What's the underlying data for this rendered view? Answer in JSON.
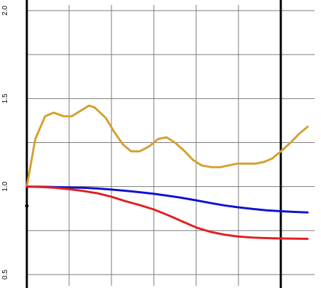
{
  "chart_data": {
    "type": "line",
    "title": "",
    "xlabel": "",
    "ylabel": "",
    "xlim": [
      0,
      20
    ],
    "ylim": [
      0.5,
      2.0
    ],
    "grid": true,
    "x_grid": [
      0,
      3,
      6,
      9,
      12,
      15,
      18
    ],
    "y_ticks": [
      {
        "value": 0.5,
        "label": "0.5"
      },
      {
        "value": 1.0,
        "label": "1.0"
      },
      {
        "value": 1.5,
        "label": "1.5"
      },
      {
        "value": 2.0,
        "label": "2.0"
      }
    ],
    "y_grid": [
      0.5,
      0.75,
      1.0,
      1.25,
      1.5,
      1.75,
      2.0
    ],
    "vertical_lines": [
      {
        "x": 0,
        "color": "#000000"
      },
      {
        "x": 18,
        "color": "#000000"
      }
    ],
    "point": {
      "x": 0,
      "y": 0.89,
      "color": "#000000"
    },
    "series": [
      {
        "color": "#d4a030",
        "x": [
          0,
          0.6,
          1.3,
          1.9,
          2.6,
          3.2,
          3.8,
          4.4,
          4.8,
          5.6,
          6.2,
          6.8,
          7.4,
          8.0,
          8.7,
          9.3,
          9.9,
          10.5,
          11.2,
          11.8,
          12.4,
          13.1,
          13.7,
          14.3,
          14.9,
          15.5,
          16.2,
          16.8,
          17.4,
          18.0,
          18.7,
          19.3,
          19.9
        ],
        "y": [
          1.0,
          1.27,
          1.4,
          1.42,
          1.4,
          1.4,
          1.43,
          1.46,
          1.45,
          1.39,
          1.31,
          1.24,
          1.2,
          1.2,
          1.23,
          1.27,
          1.28,
          1.25,
          1.2,
          1.15,
          1.12,
          1.11,
          1.11,
          1.12,
          1.13,
          1.13,
          1.13,
          1.14,
          1.16,
          1.2,
          1.25,
          1.3,
          1.34
        ]
      },
      {
        "color": "#1010d0",
        "x": [
          0,
          1.0,
          2.0,
          3.0,
          4.0,
          5.0,
          6.0,
          7.0,
          8.0,
          9.0,
          10.0,
          11.0,
          12.0,
          13.0,
          14.0,
          15.0,
          16.0,
          17.0,
          18.0,
          19.0,
          19.9
        ],
        "y": [
          1.0,
          0.999,
          0.997,
          0.995,
          0.993,
          0.989,
          0.983,
          0.976,
          0.968,
          0.959,
          0.948,
          0.936,
          0.922,
          0.907,
          0.893,
          0.882,
          0.873,
          0.865,
          0.86,
          0.856,
          0.853
        ]
      },
      {
        "color": "#e02020",
        "x": [
          0,
          1.0,
          2.0,
          3.0,
          4.0,
          5.0,
          6.0,
          7.0,
          8.0,
          9.0,
          10.0,
          11.0,
          12.0,
          13.0,
          14.0,
          15.0,
          16.0,
          17.0,
          18.0,
          19.0,
          19.9
        ],
        "y": [
          1.0,
          0.998,
          0.993,
          0.985,
          0.975,
          0.962,
          0.942,
          0.917,
          0.895,
          0.87,
          0.838,
          0.803,
          0.768,
          0.743,
          0.727,
          0.716,
          0.71,
          0.707,
          0.705,
          0.704,
          0.703
        ]
      }
    ]
  }
}
